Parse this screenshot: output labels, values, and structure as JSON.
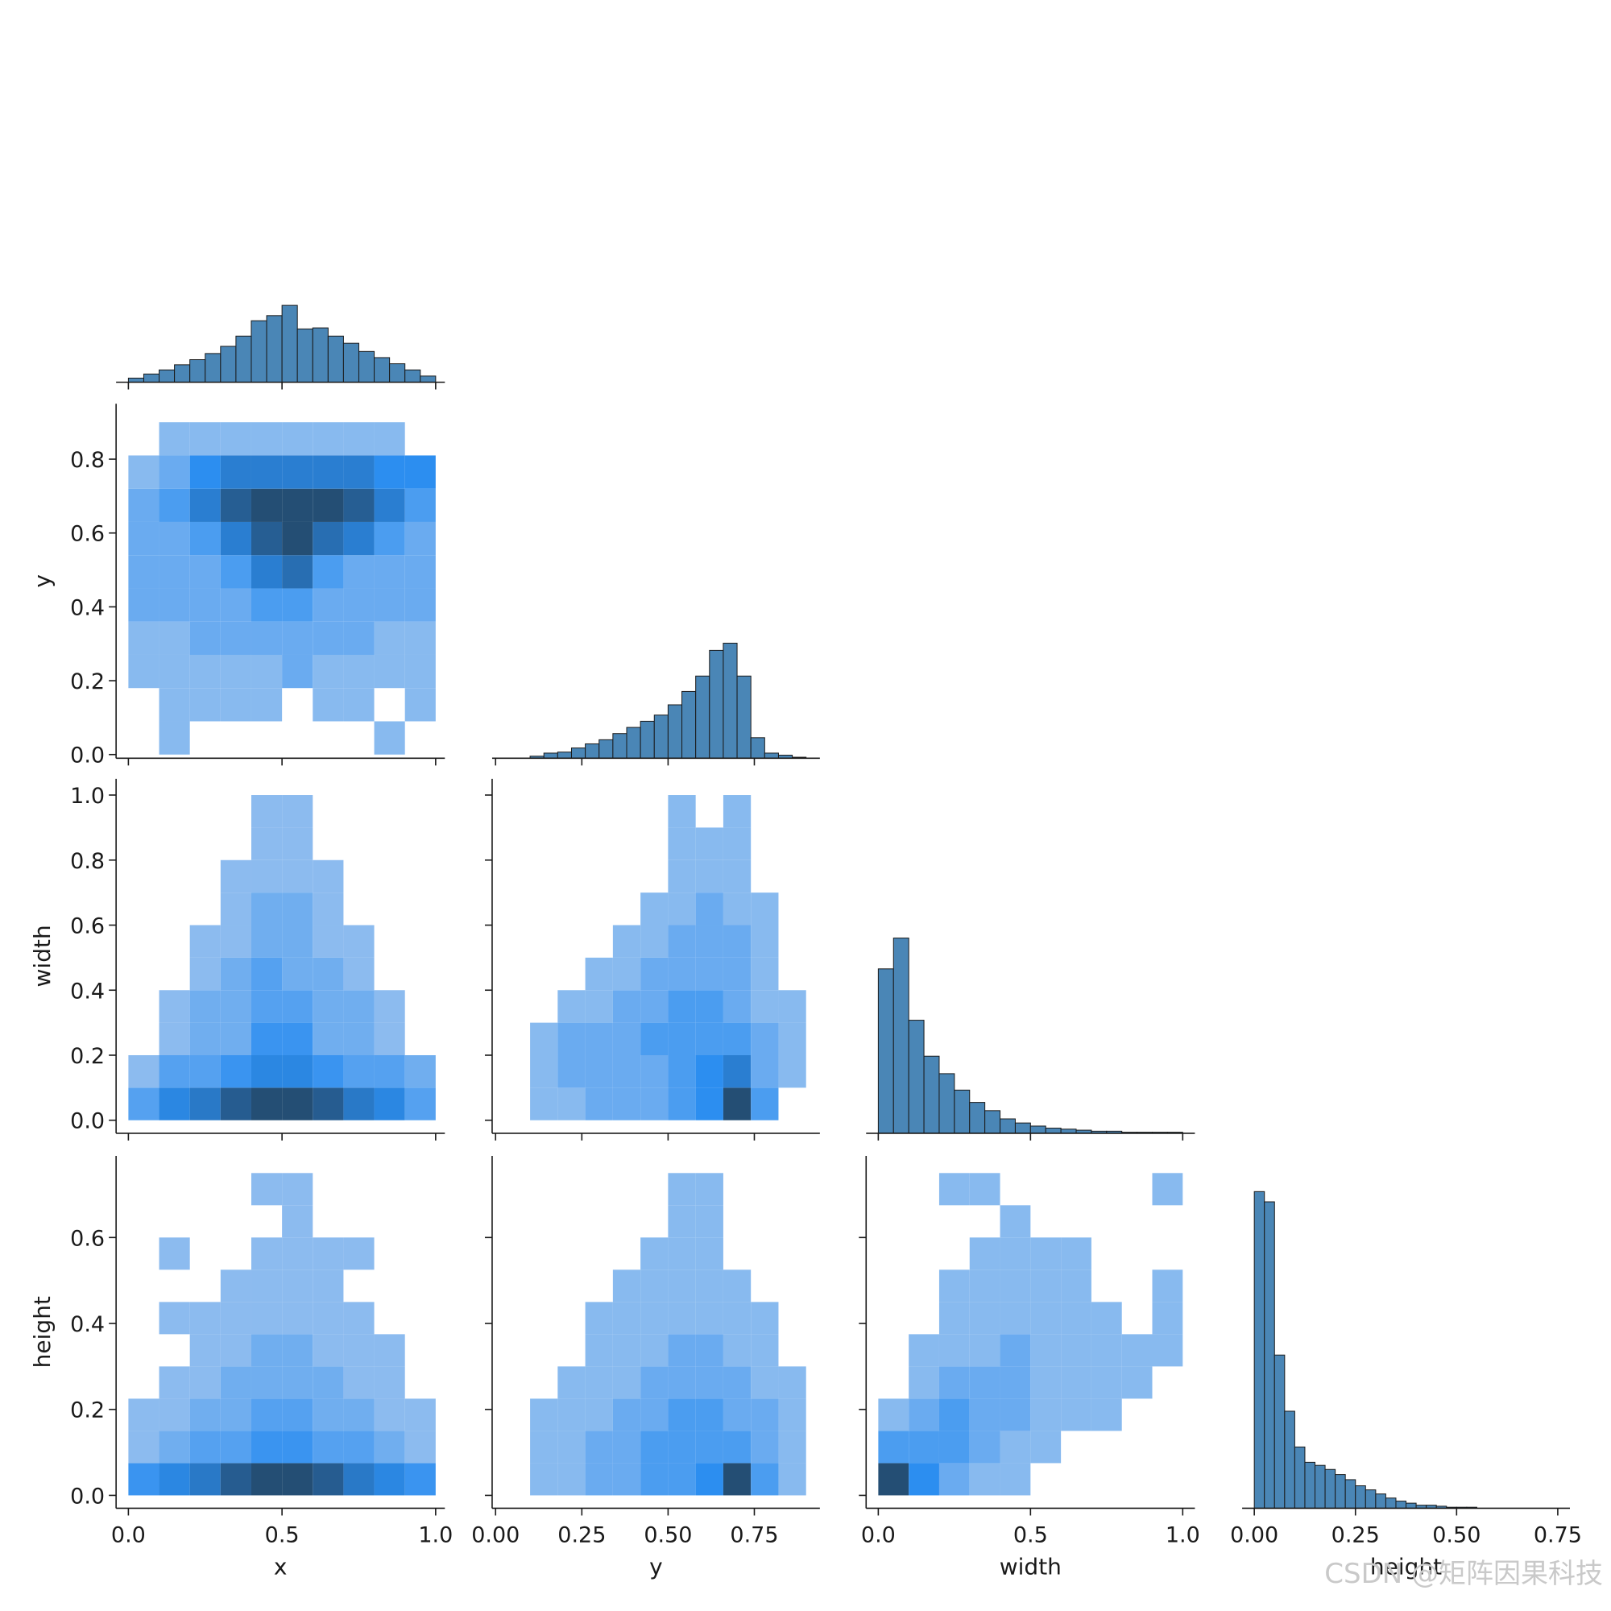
{
  "cmap": [
    "#a7c8ef",
    "#2c8ef0",
    "#244e74"
  ],
  "watermark": "CSDN @矩阵因果科技",
  "chart_data": [
    {
      "type": "histogram",
      "color": "#4a86b6",
      "bins": [
        0,
        0.05,
        0.1,
        0.15,
        0.2,
        0.25,
        0.3,
        0.35,
        0.4,
        0.45,
        0.5,
        0.55,
        0.6,
        0.65,
        0.7,
        0.75,
        0.8,
        0.85,
        0.9,
        0.95,
        1.0
      ],
      "counts": [
        4,
        8,
        12,
        17,
        22,
        28,
        35,
        45,
        60,
        65,
        75,
        52,
        53,
        45,
        38,
        30,
        24,
        18,
        12,
        6
      ],
      "xlim": [
        -0.04,
        1.03
      ],
      "ylim": [
        0,
        345
      ],
      "xticks": [
        0,
        0.5,
        1
      ]
    },
    {
      "type": "hist2d",
      "xbins": [
        0,
        0.1,
        0.2,
        0.3,
        0.4,
        0.5,
        0.6,
        0.7,
        0.8,
        0.9,
        1.0
      ],
      "ybins": [
        0,
        0.09,
        0.18,
        0.27,
        0.36,
        0.45,
        0.54,
        0.63,
        0.72,
        0.81,
        0.9
      ],
      "counts": [
        [
          0,
          1,
          0,
          0,
          0,
          0,
          0,
          0,
          1,
          0
        ],
        [
          0,
          1,
          1,
          1,
          1,
          0,
          1,
          1,
          0,
          1
        ],
        [
          1,
          1,
          1,
          1,
          1,
          2,
          1,
          1,
          1,
          1
        ],
        [
          1,
          1,
          2,
          2,
          2,
          2,
          2,
          2,
          1,
          1
        ],
        [
          2,
          2,
          2,
          2,
          3,
          3,
          2,
          2,
          2,
          2
        ],
        [
          2,
          2,
          2,
          3,
          5,
          6,
          3,
          2,
          2,
          2
        ],
        [
          2,
          2,
          3,
          5,
          7,
          8,
          6,
          5,
          3,
          2
        ],
        [
          2,
          3,
          5,
          7,
          8,
          8,
          8,
          7,
          5,
          3
        ],
        [
          1,
          2,
          4,
          5,
          5,
          5,
          5,
          5,
          4,
          4
        ],
        [
          0,
          1,
          1,
          1,
          1,
          1,
          1,
          1,
          1,
          0
        ]
      ],
      "xlim": [
        -0.04,
        1.03
      ],
      "ylim": [
        -0.01,
        0.95
      ],
      "xticks": [
        0,
        0.5,
        1
      ],
      "yticks": [
        {
          "value": 0,
          "label": "0.0"
        },
        {
          "value": 0.2,
          "label": "0.2"
        },
        {
          "value": 0.4,
          "label": "0.4"
        },
        {
          "value": 0.6,
          "label": "0.6"
        },
        {
          "value": 0.8,
          "label": "0.8"
        }
      ],
      "ylabel": "y"
    },
    {
      "type": "histogram",
      "color": "#4a86b6",
      "bins": [
        0.1,
        0.14,
        0.18,
        0.22,
        0.26,
        0.3,
        0.34,
        0.38,
        0.42,
        0.46,
        0.5,
        0.54,
        0.58,
        0.62,
        0.66,
        0.7,
        0.74,
        0.78,
        0.82,
        0.86,
        0.9
      ],
      "counts": [
        2,
        5,
        6,
        10,
        14,
        18,
        24,
        30,
        36,
        42,
        52,
        65,
        80,
        105,
        112,
        80,
        20,
        5,
        3,
        1
      ],
      "xlim": [
        -0.01,
        0.94
      ],
      "ylim": [
        0,
        345
      ],
      "xticks": [
        0,
        0.25,
        0.5,
        0.75
      ]
    },
    {
      "type": "hist2d",
      "xbins": [
        0,
        0.1,
        0.2,
        0.3,
        0.4,
        0.5,
        0.6,
        0.7,
        0.8,
        0.9,
        1.0
      ],
      "ybins": [
        0,
        0.1,
        0.2,
        0.3,
        0.4,
        0.5,
        0.6,
        0.7,
        0.8,
        0.9,
        1.0
      ],
      "counts": [
        [
          3,
          5,
          6,
          8,
          9,
          9,
          8,
          6,
          5,
          3
        ],
        [
          1,
          3,
          3,
          4,
          5,
          5,
          4,
          3,
          3,
          2
        ],
        [
          0,
          1,
          2,
          2,
          4,
          4,
          2,
          2,
          1,
          0
        ],
        [
          0,
          1,
          2,
          2,
          3,
          3,
          2,
          2,
          1,
          0
        ],
        [
          0,
          0,
          1,
          2,
          3,
          2,
          2,
          1,
          0,
          0
        ],
        [
          0,
          0,
          1,
          1,
          2,
          2,
          1,
          1,
          0,
          0
        ],
        [
          0,
          0,
          0,
          1,
          2,
          2,
          1,
          0,
          0,
          0
        ],
        [
          0,
          0,
          0,
          1,
          1,
          1,
          1,
          0,
          0,
          0
        ],
        [
          0,
          0,
          0,
          0,
          1,
          1,
          0,
          0,
          0,
          0
        ],
        [
          0,
          0,
          0,
          0,
          1,
          1,
          0,
          0,
          0,
          0
        ]
      ],
      "xlim": [
        -0.04,
        1.03
      ],
      "ylim": [
        -0.04,
        1.05
      ],
      "xticks": [
        0,
        0.5,
        1
      ],
      "yticks": [
        {
          "value": 0,
          "label": "0.0"
        },
        {
          "value": 0.2,
          "label": "0.2"
        },
        {
          "value": 0.4,
          "label": "0.4"
        },
        {
          "value": 0.6,
          "label": "0.6"
        },
        {
          "value": 0.8,
          "label": "0.8"
        },
        {
          "value": 1,
          "label": "1.0"
        }
      ],
      "ylabel": "width"
    },
    {
      "type": "hist2d",
      "xbins": [
        0.1,
        0.18,
        0.26,
        0.34,
        0.42,
        0.5,
        0.58,
        0.66,
        0.74,
        0.82,
        0.9
      ],
      "ybins": [
        0,
        0.1,
        0.2,
        0.3,
        0.4,
        0.5,
        0.6,
        0.7,
        0.8,
        0.9,
        1.0
      ],
      "counts": [
        [
          1,
          1,
          2,
          2,
          2,
          3,
          4,
          8,
          3,
          0
        ],
        [
          1,
          2,
          2,
          2,
          2,
          3,
          4,
          5,
          2,
          1
        ],
        [
          1,
          2,
          2,
          2,
          3,
          3,
          3,
          3,
          2,
          1
        ],
        [
          0,
          1,
          1,
          2,
          2,
          3,
          3,
          2,
          1,
          1
        ],
        [
          0,
          0,
          1,
          1,
          2,
          2,
          2,
          2,
          1,
          0
        ],
        [
          0,
          0,
          0,
          1,
          1,
          2,
          2,
          2,
          1,
          0
        ],
        [
          0,
          0,
          0,
          0,
          1,
          1,
          2,
          1,
          1,
          0
        ],
        [
          0,
          0,
          0,
          0,
          0,
          1,
          1,
          1,
          0,
          0
        ],
        [
          0,
          0,
          0,
          0,
          0,
          1,
          1,
          1,
          0,
          0
        ],
        [
          0,
          0,
          0,
          0,
          0,
          1,
          0,
          1,
          0,
          0
        ]
      ],
      "xlim": [
        -0.01,
        0.94
      ],
      "ylim": [
        -0.04,
        1.05
      ],
      "xticks": [
        0,
        0.25,
        0.5,
        0.75
      ],
      "yticks": [
        0,
        0.2,
        0.4,
        0.6,
        0.8,
        1
      ]
    },
    {
      "type": "histogram",
      "color": "#4a86b6",
      "bins": [
        0,
        0.05,
        0.1,
        0.15,
        0.2,
        0.25,
        0.3,
        0.35,
        0.4,
        0.45,
        0.5,
        0.55,
        0.6,
        0.65,
        0.7,
        0.75,
        0.8,
        0.85,
        0.9,
        0.95,
        1.0
      ],
      "counts": [
        160,
        190,
        110,
        75,
        58,
        42,
        30,
        22,
        14,
        10,
        7,
        5,
        4,
        3,
        2,
        2,
        1,
        1,
        1,
        1
      ],
      "xlim": [
        -0.04,
        1.04
      ],
      "ylim": [
        0,
        345
      ],
      "xticks": [
        0,
        0.5,
        1
      ]
    },
    {
      "type": "hist2d",
      "xbins": [
        0,
        0.1,
        0.2,
        0.3,
        0.4,
        0.5,
        0.6,
        0.7,
        0.8,
        0.9,
        1.0
      ],
      "ybins": [
        0,
        0.075,
        0.15,
        0.225,
        0.3,
        0.375,
        0.45,
        0.525,
        0.6,
        0.675,
        0.75
      ],
      "counts": [
        [
          4,
          5,
          6,
          8,
          9,
          9,
          8,
          6,
          5,
          4
        ],
        [
          1,
          2,
          3,
          3,
          4,
          4,
          3,
          3,
          2,
          1
        ],
        [
          1,
          1,
          2,
          2,
          3,
          3,
          2,
          2,
          1,
          1
        ],
        [
          0,
          1,
          1,
          2,
          2,
          2,
          2,
          1,
          1,
          0
        ],
        [
          0,
          0,
          1,
          1,
          2,
          2,
          1,
          1,
          1,
          0
        ],
        [
          0,
          1,
          1,
          1,
          1,
          1,
          1,
          1,
          0,
          0
        ],
        [
          0,
          0,
          0,
          1,
          1,
          1,
          1,
          0,
          0,
          0
        ],
        [
          0,
          1,
          0,
          0,
          1,
          1,
          1,
          1,
          0,
          0
        ],
        [
          0,
          0,
          0,
          0,
          0,
          1,
          0,
          0,
          0,
          0
        ],
        [
          0,
          0,
          0,
          0,
          1,
          1,
          0,
          0,
          0,
          0
        ]
      ],
      "xlim": [
        -0.04,
        1.03
      ],
      "ylim": [
        -0.03,
        0.79
      ],
      "xticks": [
        {
          "value": 0,
          "label": "0.0"
        },
        {
          "value": 0.5,
          "label": "0.5"
        },
        {
          "value": 1,
          "label": "1.0"
        }
      ],
      "yticks": [
        {
          "value": 0,
          "label": "0.0"
        },
        {
          "value": 0.2,
          "label": "0.2"
        },
        {
          "value": 0.4,
          "label": "0.4"
        },
        {
          "value": 0.6,
          "label": "0.6"
        }
      ],
      "xlabel": "x",
      "ylabel": "height"
    },
    {
      "type": "hist2d",
      "xbins": [
        0.1,
        0.18,
        0.26,
        0.34,
        0.42,
        0.5,
        0.58,
        0.66,
        0.74,
        0.82,
        0.9
      ],
      "ybins": [
        0,
        0.075,
        0.15,
        0.225,
        0.3,
        0.375,
        0.45,
        0.525,
        0.6,
        0.675,
        0.75
      ],
      "counts": [
        [
          1,
          1,
          2,
          2,
          3,
          3,
          4,
          8,
          3,
          1
        ],
        [
          1,
          1,
          2,
          2,
          3,
          3,
          3,
          3,
          2,
          1
        ],
        [
          1,
          1,
          1,
          2,
          2,
          3,
          3,
          2,
          2,
          1
        ],
        [
          0,
          1,
          1,
          1,
          2,
          2,
          2,
          2,
          1,
          1
        ],
        [
          0,
          0,
          1,
          1,
          1,
          2,
          2,
          1,
          1,
          0
        ],
        [
          0,
          0,
          1,
          1,
          1,
          1,
          1,
          1,
          1,
          0
        ],
        [
          0,
          0,
          0,
          1,
          1,
          1,
          1,
          1,
          0,
          0
        ],
        [
          0,
          0,
          0,
          0,
          1,
          1,
          1,
          0,
          0,
          0
        ],
        [
          0,
          0,
          0,
          0,
          0,
          1,
          1,
          0,
          0,
          0
        ],
        [
          0,
          0,
          0,
          0,
          0,
          1,
          1,
          0,
          0,
          0
        ]
      ],
      "xlim": [
        -0.01,
        0.94
      ],
      "ylim": [
        -0.03,
        0.79
      ],
      "xticks": [
        {
          "value": 0,
          "label": "0.00"
        },
        {
          "value": 0.25,
          "label": "0.25"
        },
        {
          "value": 0.5,
          "label": "0.50"
        },
        {
          "value": 0.75,
          "label": "0.75"
        }
      ],
      "yticks": [
        0,
        0.2,
        0.4,
        0.6
      ],
      "xlabel": "y"
    },
    {
      "type": "hist2d",
      "xbins": [
        0,
        0.1,
        0.2,
        0.3,
        0.4,
        0.5,
        0.6,
        0.7,
        0.8,
        0.9,
        1.0
      ],
      "ybins": [
        0,
        0.075,
        0.15,
        0.225,
        0.3,
        0.375,
        0.45,
        0.525,
        0.6,
        0.675,
        0.75
      ],
      "counts": [
        [
          8,
          4,
          2,
          1,
          1,
          0,
          0,
          0,
          0,
          0
        ],
        [
          3,
          3,
          3,
          2,
          1,
          1,
          0,
          0,
          0,
          0
        ],
        [
          1,
          2,
          3,
          2,
          2,
          1,
          1,
          1,
          0,
          0
        ],
        [
          0,
          1,
          2,
          2,
          2,
          1,
          1,
          1,
          1,
          0
        ],
        [
          0,
          1,
          1,
          1,
          2,
          1,
          1,
          1,
          1,
          1
        ],
        [
          0,
          0,
          1,
          1,
          1,
          1,
          1,
          1,
          0,
          1
        ],
        [
          0,
          0,
          1,
          1,
          1,
          1,
          1,
          0,
          0,
          1
        ],
        [
          0,
          0,
          0,
          1,
          1,
          1,
          1,
          0,
          0,
          0
        ],
        [
          0,
          0,
          0,
          0,
          1,
          0,
          0,
          0,
          0,
          0
        ],
        [
          0,
          0,
          1,
          1,
          0,
          0,
          0,
          0,
          0,
          1
        ]
      ],
      "xlim": [
        -0.04,
        1.04
      ],
      "ylim": [
        -0.03,
        0.79
      ],
      "xticks": [
        {
          "value": 0,
          "label": "0.0"
        },
        {
          "value": 0.5,
          "label": "0.5"
        },
        {
          "value": 1,
          "label": "1.0"
        }
      ],
      "yticks": [
        0,
        0.2,
        0.4,
        0.6
      ],
      "xlabel": "width"
    },
    {
      "type": "histogram",
      "color": "#4a86b6",
      "bins": [
        0,
        0.025,
        0.05,
        0.075,
        0.1,
        0.125,
        0.15,
        0.175,
        0.2,
        0.225,
        0.25,
        0.275,
        0.3,
        0.325,
        0.35,
        0.375,
        0.4,
        0.425,
        0.45,
        0.475,
        0.5,
        0.525,
        0.55
      ],
      "counts": [
        310,
        300,
        150,
        95,
        60,
        45,
        42,
        38,
        33,
        28,
        22,
        18,
        14,
        10,
        7,
        5,
        3,
        3,
        2,
        1,
        1,
        1
      ],
      "xlim": [
        -0.03,
        0.78
      ],
      "ylim": [
        0,
        345
      ],
      "xticks": [
        {
          "value": 0,
          "label": "0.00"
        },
        {
          "value": 0.25,
          "label": "0.25"
        },
        {
          "value": 0.5,
          "label": "0.50"
        },
        {
          "value": 0.75,
          "label": "0.75"
        }
      ],
      "xlabel": "height"
    }
  ]
}
